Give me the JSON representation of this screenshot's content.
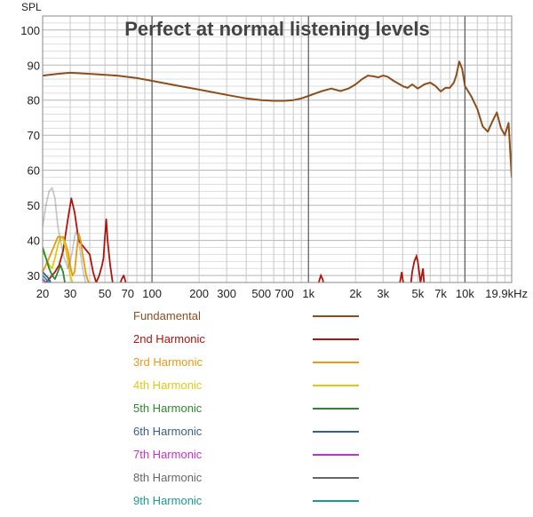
{
  "chart_data": {
    "type": "line",
    "title": "Perfect at normal listening levels",
    "ylabel": "SPL",
    "xlabel": "",
    "x_scale": "log",
    "xlim": [
      20,
      19900
    ],
    "ylim": [
      28,
      104
    ],
    "grid": true,
    "legend_position": "bottom",
    "x_tick_labels": [
      "20",
      "30",
      "50",
      "70",
      "100",
      "200",
      "300",
      "500",
      "700",
      "1k",
      "2k",
      "3k",
      "5k",
      "7k",
      "10k",
      "19.9kHz"
    ],
    "x_tick_values": [
      20,
      30,
      50,
      70,
      100,
      200,
      300,
      500,
      700,
      1000,
      2000,
      3000,
      5000,
      7000,
      10000,
      19900
    ],
    "y_ticks": [
      30,
      40,
      50,
      60,
      70,
      80,
      90,
      100
    ],
    "series": [
      {
        "name": "Fundamental",
        "color": "#8b4f1d",
        "x": [
          20,
          25,
          30,
          40,
          50,
          60,
          80,
          100,
          150,
          200,
          300,
          400,
          500,
          600,
          700,
          800,
          900,
          1000,
          1200,
          1400,
          1600,
          1800,
          2000,
          2200,
          2400,
          2600,
          2800,
          3000,
          3200,
          3500,
          4000,
          4300,
          4600,
          5000,
          5500,
          6000,
          6500,
          7000,
          7500,
          8000,
          8500,
          8800,
          9200,
          9600,
          10000,
          10500,
          11000,
          12000,
          13000,
          14000,
          15000,
          16000,
          17000,
          18000,
          19000,
          19900
        ],
        "y": [
          87,
          87.5,
          87.8,
          87.5,
          87.2,
          87.0,
          86.3,
          85.5,
          84,
          83,
          81.5,
          80.5,
          80,
          79.8,
          79.8,
          80,
          80.5,
          81.2,
          82.5,
          83.3,
          82.6,
          83.3,
          84.5,
          86,
          87,
          86.8,
          86.5,
          87,
          86.7,
          85.5,
          84,
          83.5,
          84.5,
          83.3,
          84.5,
          85,
          84,
          82.5,
          83.5,
          83.5,
          85,
          87,
          91,
          89,
          84,
          82.5,
          81,
          77.5,
          72.5,
          71,
          74,
          76.5,
          72,
          70,
          73.5,
          58
        ]
      },
      {
        "name": "2nd Harmonic",
        "color": "#b0140c",
        "x": [
          20,
          22,
          24,
          25.5,
          27,
          29,
          30.5,
          32,
          34,
          36,
          40,
          42,
          44,
          46,
          48,
          49,
          50,
          51,
          52,
          54,
          56,
          60,
          62,
          64,
          66,
          68,
          70
        ],
        "y": [
          27,
          29,
          31,
          33,
          37,
          46,
          52,
          48,
          40,
          38.5,
          36,
          31,
          28,
          30,
          33,
          35,
          41,
          46,
          40,
          33,
          28,
          26,
          27,
          29,
          30,
          28,
          26
        ]
      },
      {
        "name": "3rd Harmonic",
        "color": "#e89a12",
        "x": [
          20,
          22,
          24,
          25,
          27,
          29,
          30,
          31,
          32,
          33,
          34,
          35,
          36,
          38,
          40
        ],
        "y": [
          31,
          35,
          39,
          41,
          41,
          37,
          33,
          30,
          31,
          37,
          42,
          40,
          36,
          30,
          27
        ]
      },
      {
        "name": "4th Harmonic",
        "color": "#e0c814",
        "x": [
          20,
          21,
          22,
          23,
          24,
          25,
          26,
          27,
          28,
          29,
          30,
          31,
          32
        ],
        "y": [
          37,
          35,
          33,
          32,
          35,
          38.5,
          41,
          40.5,
          38,
          34,
          30,
          28,
          26
        ]
      },
      {
        "name": "5th Harmonic",
        "color": "#2b8a2b",
        "x": [
          20,
          21,
          22,
          23,
          24,
          25,
          26,
          27,
          28
        ],
        "y": [
          38,
          35,
          32,
          30,
          29,
          31,
          33,
          31,
          27
        ]
      },
      {
        "name": "6th Harmonic",
        "color": "#3b5c8e",
        "x": [
          20,
          21,
          22,
          23
        ],
        "y": [
          31,
          30,
          29,
          27
        ]
      },
      {
        "name": "7th Harmonic",
        "color": "#c830c8",
        "x": [
          20,
          21,
          22
        ],
        "y": [
          29,
          28,
          27
        ]
      },
      {
        "name": "8th Harmonic",
        "color": "#666666",
        "x": [
          20,
          21,
          22,
          23,
          24,
          25,
          26,
          27,
          28,
          29,
          30,
          31,
          32,
          33,
          34,
          35,
          36,
          38
        ],
        "y": [
          44,
          50,
          54,
          55,
          52,
          44,
          40,
          36,
          34,
          32,
          34,
          37,
          41,
          43,
          40,
          36,
          32,
          27
        ]
      },
      {
        "name": "9th Harmonic",
        "color": "#1a9a8f",
        "x": [
          20,
          21,
          22,
          23,
          24
        ],
        "y": [
          30,
          29,
          28,
          27.5,
          27
        ]
      }
    ],
    "extra_2nd_harmonic_peaks": [
      {
        "x": [
          1150,
          1180,
          1200,
          1230,
          1260
        ],
        "y": [
          27,
          29,
          30,
          29,
          27
        ]
      },
      {
        "x": [
          3800,
          3880,
          3950,
          4000,
          4080
        ],
        "y": [
          27,
          29,
          31,
          29,
          27
        ]
      },
      {
        "x": [
          4500,
          4600,
          4750,
          4900,
          5000,
          5100,
          5200,
          5300,
          5400,
          5500
        ],
        "y": [
          27,
          31,
          34,
          35.5,
          34,
          31,
          28,
          30,
          32,
          27
        ]
      }
    ]
  }
}
